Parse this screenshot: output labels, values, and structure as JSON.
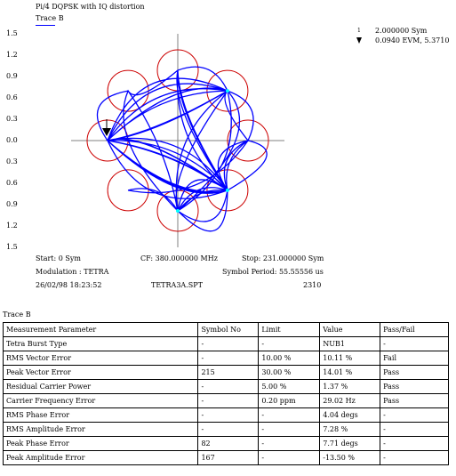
{
  "plot": {
    "title": "Pi/4 DQPSK with IQ distortion",
    "trace_label": "Trace B",
    "trace_color": "#0000ff",
    "y_tick_labels": [
      "1.5",
      "1.2",
      "0.9",
      "0.6",
      "0.3",
      "0.0",
      "0.3",
      "0.6",
      "0.9",
      "1.2",
      "1.5"
    ],
    "marker": {
      "index": "1",
      "symbol": "2.000000 Sym",
      "evm": "0.0940 EVM, 5.3710"
    },
    "start": "Start: 0 Sym",
    "cf": "CF: 380.000000 MHz",
    "stop": "Stop: 231.000000 Sym",
    "modulation": "Modulation : TETRA",
    "symbol_period": "Symbol Period: 55.55556 us",
    "datetime": "26/02/98 18:23:52",
    "filename": "TETRA3A.SPT",
    "count": "2310"
  },
  "results": {
    "section_label": "Trace B",
    "headers": [
      "Measurement Parameter",
      "Symbol No",
      "Limit",
      "Value",
      "Pass/Fail"
    ],
    "rows": [
      [
        "Tetra Burst Type",
        "-",
        "-",
        "NUB1",
        "-"
      ],
      [
        "RMS Vector Error",
        "-",
        "10.00 %",
        "10.11 %",
        "Fail"
      ],
      [
        "Peak Vector Error",
        "215",
        "30.00 %",
        "14.01 %",
        "Pass"
      ],
      [
        "Residual Carrier Power",
        "-",
        "5.00 %",
        "1.37 %",
        "Pass"
      ],
      [
        "Carrier Frequency Error",
        "-",
        "0.20 ppm",
        "29.02 Hz",
        "Pass"
      ],
      [
        "RMS Phase Error",
        "-",
        "-",
        "4.04 degs",
        "-"
      ],
      [
        "RMS Amplitude Error",
        "-",
        "-",
        "7.28 %",
        "-"
      ],
      [
        "Peak Phase Error",
        "82",
        "-",
        "7.71 degs",
        "-"
      ],
      [
        "Peak Amplitude Error",
        "167",
        "-",
        "-13.50 %",
        "-"
      ]
    ]
  },
  "colors": {
    "trace": "#0000ff",
    "target_circles": "#cc0000",
    "axes": "#808080",
    "highlight": "#00ffff"
  }
}
